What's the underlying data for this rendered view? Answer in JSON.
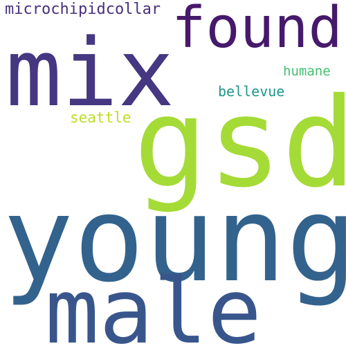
{
  "words": {
    "microchipidcollar": {
      "text": "microchipidcollar",
      "color": "#472f7d"
    },
    "found": {
      "text": "found",
      "color": "#46196b"
    },
    "mix": {
      "text": "mix",
      "color": "#453781"
    },
    "humane": {
      "text": "humane",
      "color": "#42be71"
    },
    "bellevue": {
      "text": "bellevue",
      "color": "#1f968b"
    },
    "seattle": {
      "text": "seattle",
      "color": "#bdde26"
    },
    "gsd": {
      "text": "gsd",
      "color": "#a5db36"
    },
    "young": {
      "text": "young",
      "color": "#33638d"
    },
    "male": {
      "text": "male",
      "color": "#39568c"
    }
  }
}
